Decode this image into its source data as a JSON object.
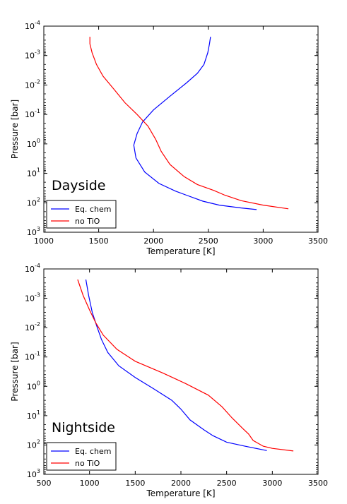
{
  "chart_data": [
    {
      "type": "line",
      "panel_label": "Dayside",
      "xlabel": "Temperature [K]",
      "ylabel": "Pressure [bar]",
      "xlim": [
        1000,
        3500
      ],
      "ylim": [
        0.0001,
        1000
      ],
      "yscale": "log",
      "y_inverted": true,
      "grid": false,
      "legend_placement": "lower-left",
      "xticks": [
        1000,
        1500,
        2000,
        2500,
        3000,
        3500
      ],
      "xtick_labels": [
        "1000",
        "1500",
        "2000",
        "2500",
        "3000",
        "3500"
      ],
      "yticks": [
        {
          "base": "10",
          "exp": "-4",
          "value": 0.0001
        },
        {
          "base": "10",
          "exp": "-3",
          "value": 0.001
        },
        {
          "base": "10",
          "exp": "-2",
          "value": 0.01
        },
        {
          "base": "10",
          "exp": "-1",
          "value": 0.1
        },
        {
          "base": "10",
          "exp": "0",
          "value": 1
        },
        {
          "base": "10",
          "exp": "1",
          "value": 10
        },
        {
          "base": "10",
          "exp": "2",
          "value": 100
        },
        {
          "base": "10",
          "exp": "3",
          "value": 1000
        }
      ],
      "series": [
        {
          "name": "Eq. chem",
          "color": "#0000ff",
          "points": [
            [
              2520,
              0.00023
            ],
            [
              2510,
              0.0004
            ],
            [
              2495,
              0.0008
            ],
            [
              2460,
              0.002
            ],
            [
              2400,
              0.004
            ],
            [
              2300,
              0.0085
            ],
            [
              2150,
              0.024
            ],
            [
              2000,
              0.07
            ],
            [
              1900,
              0.18
            ],
            [
              1850,
              0.45
            ],
            [
              1820,
              1.1
            ],
            [
              1840,
              3.0
            ],
            [
              1920,
              9.0
            ],
            [
              2050,
              22
            ],
            [
              2200,
              40
            ],
            [
              2300,
              55
            ],
            [
              2450,
              88
            ],
            [
              2600,
              120
            ],
            [
              2800,
              150
            ],
            [
              2940,
              170
            ]
          ]
        },
        {
          "name": "no TiO",
          "color": "#ff0000",
          "points": [
            [
              1420,
              0.00023
            ],
            [
              1420,
              0.0004
            ],
            [
              1440,
              0.0008
            ],
            [
              1480,
              0.002
            ],
            [
              1540,
              0.005
            ],
            [
              1640,
              0.014
            ],
            [
              1740,
              0.04
            ],
            [
              1850,
              0.1
            ],
            [
              1950,
              0.25
            ],
            [
              2020,
              0.7
            ],
            [
              2070,
              1.8
            ],
            [
              2150,
              5.0
            ],
            [
              2280,
              13
            ],
            [
              2400,
              24
            ],
            [
              2550,
              38
            ],
            [
              2650,
              55
            ],
            [
              2800,
              85
            ],
            [
              3000,
              120
            ],
            [
              3230,
              160
            ]
          ]
        }
      ]
    },
    {
      "type": "line",
      "panel_label": "Nightside",
      "xlabel": "Temperature [K]",
      "ylabel": "Pressure [bar]",
      "xlim": [
        500,
        3500
      ],
      "ylim": [
        0.0001,
        1000
      ],
      "yscale": "log",
      "y_inverted": true,
      "grid": false,
      "legend_placement": "lower-left",
      "xticks": [
        500,
        1000,
        1500,
        2000,
        2500,
        3000,
        3500
      ],
      "xtick_labels": [
        "500",
        "1000",
        "1500",
        "2000",
        "2500",
        "3000",
        "3500"
      ],
      "yticks": [
        {
          "base": "10",
          "exp": "-4",
          "value": 0.0001
        },
        {
          "base": "10",
          "exp": "-3",
          "value": 0.001
        },
        {
          "base": "10",
          "exp": "-2",
          "value": 0.01
        },
        {
          "base": "10",
          "exp": "-1",
          "value": 0.1
        },
        {
          "base": "10",
          "exp": "0",
          "value": 1
        },
        {
          "base": "10",
          "exp": "1",
          "value": 10
        },
        {
          "base": "10",
          "exp": "2",
          "value": 100
        },
        {
          "base": "10",
          "exp": "3",
          "value": 1000
        }
      ],
      "series": [
        {
          "name": "Eq. chem",
          "color": "#0000ff",
          "points": [
            [
              960,
              0.00023
            ],
            [
              990,
              0.0008
            ],
            [
              1030,
              0.003
            ],
            [
              1080,
              0.009
            ],
            [
              1130,
              0.025
            ],
            [
              1200,
              0.07
            ],
            [
              1320,
              0.2
            ],
            [
              1500,
              0.5
            ],
            [
              1700,
              1.2
            ],
            [
              1900,
              3.0
            ],
            [
              2000,
              6.0
            ],
            [
              2100,
              14
            ],
            [
              2250,
              30
            ],
            [
              2350,
              48
            ],
            [
              2500,
              80
            ],
            [
              2700,
              110
            ],
            [
              2940,
              155
            ]
          ]
        },
        {
          "name": "no TiO",
          "color": "#ff0000",
          "points": [
            [
              870,
              0.00023
            ],
            [
              930,
              0.0008
            ],
            [
              1000,
              0.0025
            ],
            [
              1070,
              0.007
            ],
            [
              1150,
              0.018
            ],
            [
              1300,
              0.055
            ],
            [
              1500,
              0.14
            ],
            [
              1800,
              0.35
            ],
            [
              2050,
              0.8
            ],
            [
              2300,
              2.0
            ],
            [
              2450,
              5.0
            ],
            [
              2560,
              12
            ],
            [
              2680,
              28
            ],
            [
              2740,
              42
            ],
            [
              2790,
              70
            ],
            [
              2900,
              110
            ],
            [
              3000,
              130
            ],
            [
              3230,
              160
            ]
          ]
        }
      ]
    }
  ]
}
